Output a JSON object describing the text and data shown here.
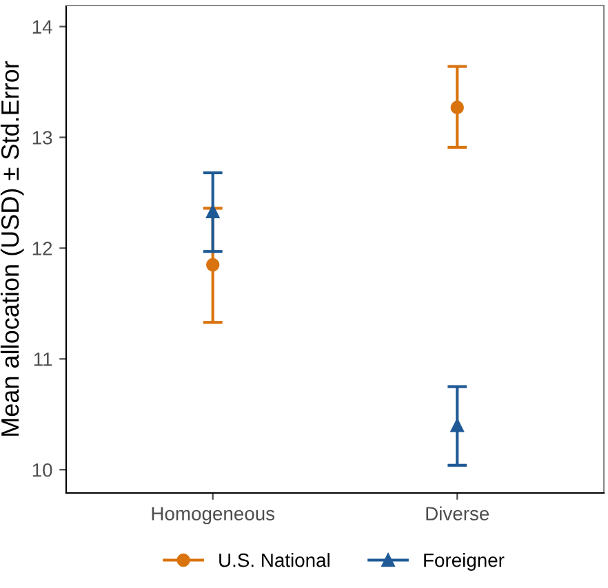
{
  "chart_data": {
    "type": "scatter",
    "ylabel": "Mean allocation (USD) ± Std.Error",
    "categories": [
      "Homogeneous",
      "Diverse"
    ],
    "series": [
      {
        "name": "U.S. National",
        "color": "#d9730d",
        "marker": "circle",
        "values": [
          11.85,
          13.27
        ],
        "errors": [
          [
            11.33,
            12.36
          ],
          [
            12.91,
            13.64
          ]
        ]
      },
      {
        "name": "Foreigner",
        "color": "#1f5a96",
        "marker": "triangle",
        "values": [
          12.33,
          10.4
        ],
        "errors": [
          [
            11.97,
            12.68
          ],
          [
            10.04,
            10.75
          ]
        ]
      }
    ],
    "ylim": [
      9.79,
      14.19
    ],
    "yticks": [
      10,
      11,
      12,
      13,
      14
    ],
    "grid": false,
    "legend": "bottom"
  }
}
